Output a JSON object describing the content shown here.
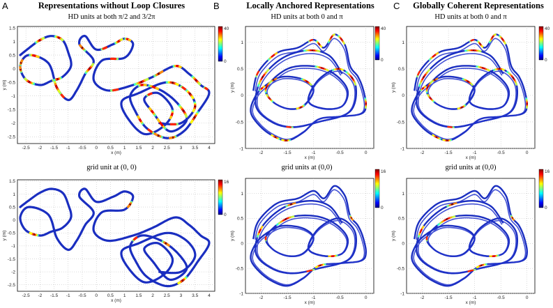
{
  "columns": [
    {
      "letter": "A",
      "title": "Representations without Loop Closures"
    },
    {
      "letter": "B",
      "title": "Locally Anchored Representations"
    },
    {
      "letter": "C",
      "title": "Globally Coherent Representations"
    }
  ],
  "colormap": "jet",
  "chart_data": [
    {
      "id": "A-top",
      "type": "scatter",
      "title": "HD units at both π/2 and 3/2π",
      "xlabel": "x (m)",
      "ylabel": "y (m)",
      "xlim": [
        -2.8,
        4.2
      ],
      "ylim": [
        -2.75,
        1.55
      ],
      "xticks": [
        "-2.5",
        "-2",
        "-1.5",
        "-1",
        "-0.5",
        "0",
        "0.5",
        "1",
        "1.5",
        "2",
        "2.5",
        "3",
        "3.5",
        "4"
      ],
      "yticks": [
        "1.5",
        "1",
        "0.5",
        "0",
        "-0.5",
        "-1",
        "-1.5",
        "-2",
        "-2.5"
      ],
      "grid": true,
      "colorbar": {
        "min": 0,
        "max": 40,
        "labels": [
          "40",
          "0"
        ]
      }
    },
    {
      "id": "B-top",
      "type": "scatter",
      "title": "HD units at both 0 and π",
      "xlabel": "x (m)",
      "ylabel": "y (m)",
      "xlim": [
        -2.3,
        0.15
      ],
      "ylim": [
        -1.0,
        1.3
      ],
      "xticks": [
        "-2",
        "-1.5",
        "-1",
        "-0.5",
        "0"
      ],
      "yticks": [
        "1",
        "0.5",
        "0",
        "-0.5",
        "-1"
      ],
      "grid": true,
      "colorbar": {
        "min": 0,
        "max": 40,
        "labels": [
          "40",
          "0"
        ]
      }
    },
    {
      "id": "C-top",
      "type": "scatter",
      "title": "HD units at both 0 and π",
      "xlabel": "x (m)",
      "ylabel": "y (m)",
      "xlim": [
        -2.3,
        0.15
      ],
      "ylim": [
        -1.0,
        1.3
      ],
      "xticks": [
        "-2",
        "-1.5",
        "-1",
        "-0.5",
        "0"
      ],
      "yticks": [
        "1",
        "0.5",
        "0",
        "-0.5",
        "-1"
      ],
      "grid": true,
      "colorbar": {
        "min": 0,
        "max": 40,
        "labels": [
          "40",
          "0"
        ]
      }
    },
    {
      "id": "A-bottom",
      "type": "scatter",
      "title": "grid unit at (0, 0)",
      "xlabel": "x (m)",
      "ylabel": "y (m)",
      "xlim": [
        -2.8,
        4.2
      ],
      "ylim": [
        -2.75,
        1.55
      ],
      "xticks": [
        "-2.5",
        "-2",
        "-1.5",
        "-1",
        "-0.5",
        "0",
        "0.5",
        "1",
        "1.5",
        "2",
        "2.5",
        "3",
        "3.5",
        "4"
      ],
      "yticks": [
        "1.5",
        "1",
        "0.5",
        "0",
        "-0.5",
        "-1",
        "-1.5",
        "-2",
        "-2.5"
      ],
      "grid": true,
      "colorbar": {
        "min": 0,
        "max": 16,
        "labels": [
          "16",
          "0"
        ]
      }
    },
    {
      "id": "B-bottom",
      "type": "scatter",
      "title": "grid units at (0,0)",
      "xlabel": "x (m)",
      "ylabel": "y (m)",
      "xlim": [
        -2.3,
        0.15
      ],
      "ylim": [
        -1.0,
        1.3
      ],
      "xticks": [
        "-2",
        "-1.5",
        "-1",
        "-0.5",
        "0"
      ],
      "yticks": [
        "1",
        "0.5",
        "0",
        "-0.5",
        "-1"
      ],
      "grid": true,
      "colorbar": {
        "min": 0,
        "max": 16,
        "labels": [
          "16",
          "0"
        ]
      }
    },
    {
      "id": "C-bottom",
      "type": "scatter",
      "title": "grid units at (0,0)",
      "xlabel": "x (m)",
      "ylabel": "y (m)",
      "xlim": [
        -2.3,
        0.15
      ],
      "ylim": [
        -1.0,
        1.3
      ],
      "xticks": [
        "-2",
        "-1.5",
        "-1",
        "-0.5",
        "0"
      ],
      "yticks": [
        "1",
        "0.5",
        "0",
        "-0.5",
        "-1"
      ],
      "grid": true,
      "colorbar": {
        "min": 0,
        "max": 16,
        "labels": [
          "16",
          "0"
        ]
      }
    }
  ]
}
